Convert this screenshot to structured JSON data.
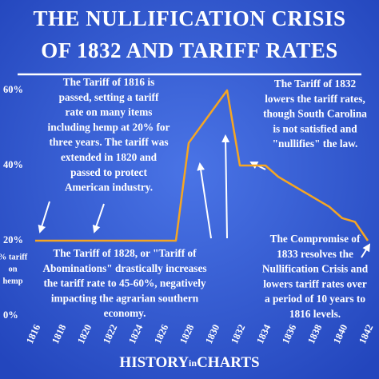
{
  "chart_data": {
    "type": "line",
    "title_lines": [
      "THE NULLIFICATION CRISIS",
      "OF 1832 AND TARIFF RATES"
    ],
    "y_label_lines": [
      "% tariff",
      "on",
      "hemp"
    ],
    "x": [
      1816,
      1817,
      1818,
      1819,
      1820,
      1821,
      1822,
      1823,
      1824,
      1825,
      1826,
      1827,
      1828,
      1831,
      1832,
      1834,
      1835,
      1836,
      1837,
      1838,
      1839,
      1840,
      1841,
      1842
    ],
    "series": [
      {
        "name": "Tariff on hemp",
        "color": "#f5a623",
        "values": [
          20,
          20,
          20,
          20,
          20,
          20,
          20,
          20,
          20,
          20,
          20,
          20,
          46,
          60,
          40,
          40,
          37,
          35,
          33,
          31,
          29,
          26,
          25,
          20
        ]
      }
    ],
    "xlim": [
      1816,
      1842
    ],
    "xticks": [
      1816,
      1818,
      1820,
      1822,
      1824,
      1826,
      1828,
      1830,
      1832,
      1834,
      1836,
      1838,
      1840,
      1842
    ],
    "ylim": [
      0,
      60
    ],
    "yticks": [
      {
        "value": 0,
        "label": "0%"
      },
      {
        "value": 20,
        "label": "20%"
      },
      {
        "value": 40,
        "label": "40%"
      },
      {
        "value": 60,
        "label": "60%"
      }
    ],
    "annotations": [
      [
        "The Tariff of 1816 is",
        "passed, setting a tariff",
        "rate on many items",
        "including hemp at 20% for",
        "three years. The tariff was",
        "extended in 1820 and",
        "passed to protect",
        "American industry."
      ],
      [
        "The Tariff of 1832",
        "lowers the tariff rates,",
        "though South Carolina",
        "is not satisfied and",
        "\"nullifies\" the law."
      ],
      [
        "The Tariff of 1828, or \"Tariff of",
        "Abominations\" drastically increases",
        "the tariff rate to 45-60%, negatively",
        "impacting the agrarian southern",
        "economy."
      ],
      [
        "The Compromise of",
        "1833 resolves the",
        "Nullification Crisis and",
        "lowers tariff rates over",
        "a period of 10 years to",
        "1816 levels."
      ]
    ],
    "brand": [
      "HISTORY",
      "in",
      "CHARTS"
    ]
  }
}
